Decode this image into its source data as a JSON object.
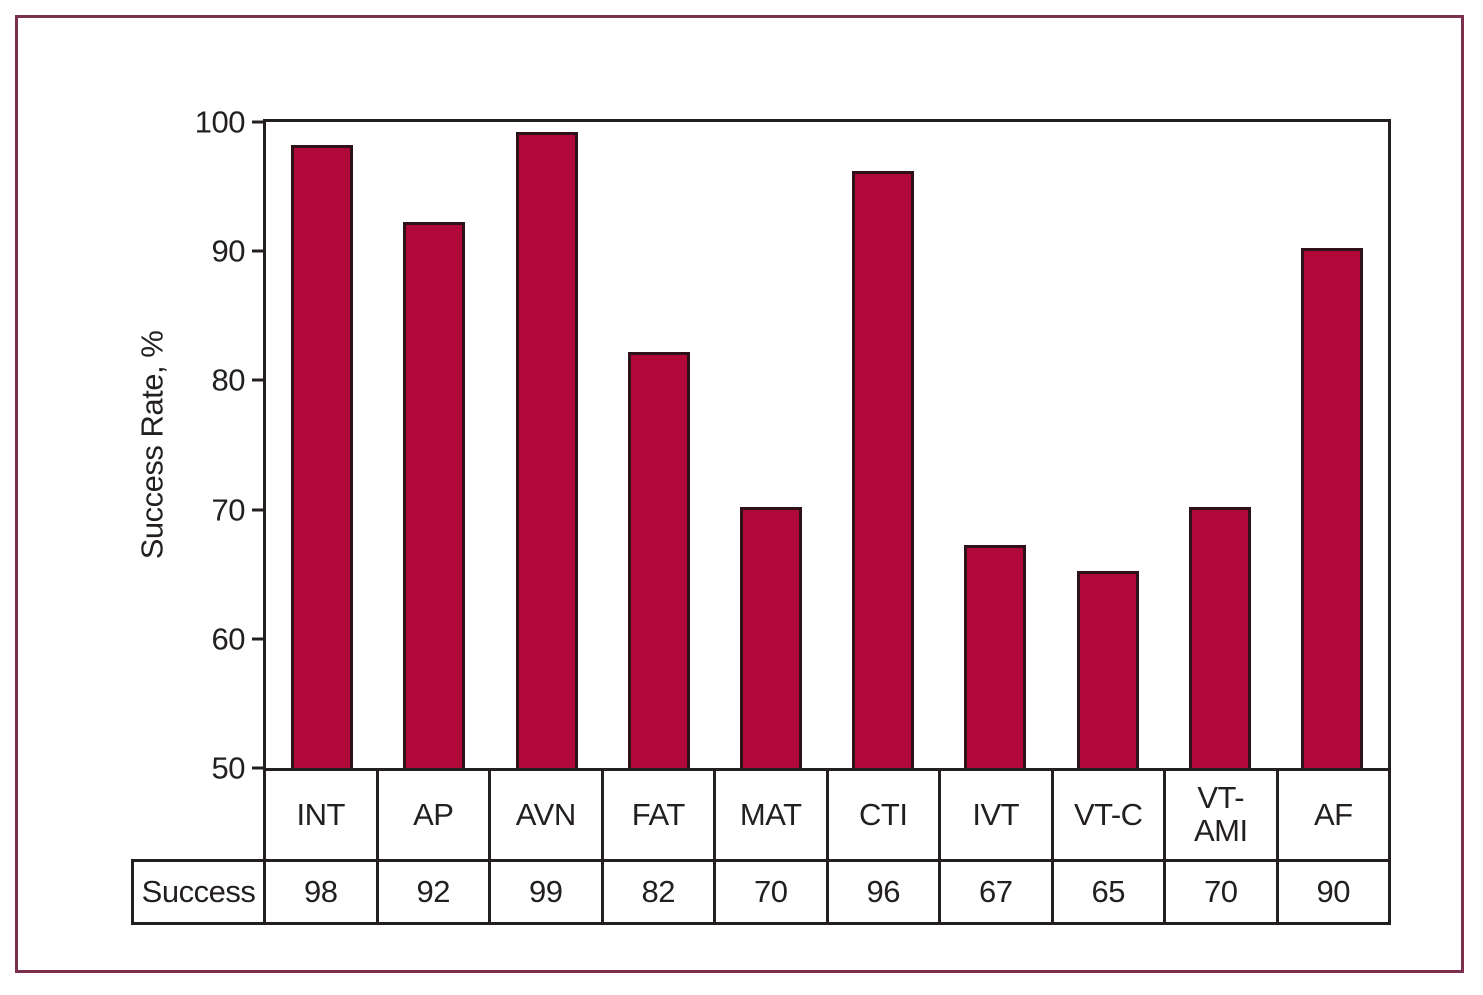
{
  "chart_data": {
    "type": "bar",
    "title": "",
    "xlabel": "",
    "ylabel": "Success Rate, %",
    "ylim": [
      50,
      100
    ],
    "yticks": [
      100,
      90,
      80,
      70,
      60,
      50
    ],
    "grid": false,
    "legend": "none",
    "categories": [
      "INT",
      "AP",
      "AVN",
      "FAT",
      "MAT",
      "CTI",
      "IVT",
      "VT-C",
      "VT-AMI",
      "AF"
    ],
    "values": [
      98,
      92,
      99,
      82,
      70,
      96,
      67,
      65,
      70,
      90
    ],
    "row_label": "Success",
    "bar_color": "#b00838",
    "bar_border_color": "#2f1119",
    "axis_color": "#231f20",
    "frame_border_color": "#7d2f4e"
  }
}
